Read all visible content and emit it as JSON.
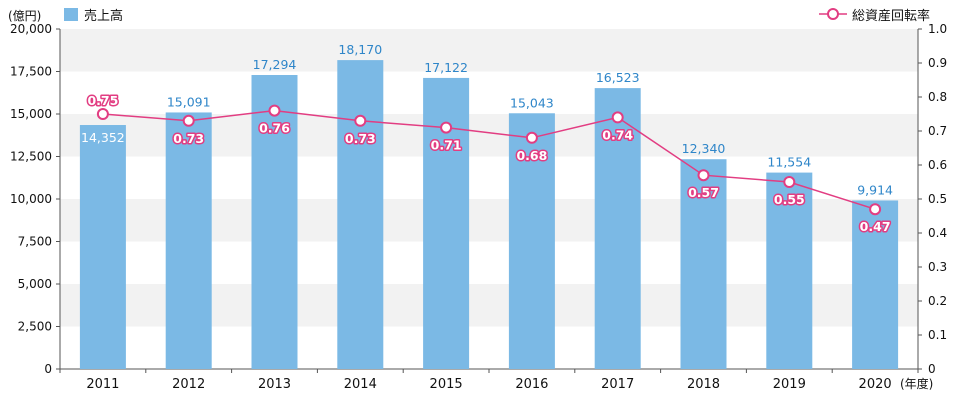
{
  "chart_data": {
    "type": "bar",
    "categories": [
      "2011",
      "2012",
      "2013",
      "2014",
      "2015",
      "2016",
      "2017",
      "2018",
      "2019",
      "2020"
    ],
    "series": [
      {
        "name": "売上高",
        "type": "bar",
        "axis": "left",
        "color": "#7bb9e5",
        "values": [
          14352,
          15091,
          17294,
          18170,
          17122,
          15043,
          16523,
          12340,
          11554,
          9914
        ],
        "labels": [
          "14,352",
          "15,091",
          "17,294",
          "18,170",
          "17,122",
          "15,043",
          "16,523",
          "12,340",
          "11,554",
          "9,914"
        ]
      },
      {
        "name": "総資産回転率",
        "type": "line",
        "axis": "right",
        "color": "#e23d82",
        "values": [
          0.75,
          0.73,
          0.76,
          0.73,
          0.71,
          0.68,
          0.74,
          0.57,
          0.55,
          0.47
        ],
        "labels": [
          "0.75",
          "0.73",
          "0.76",
          "0.73",
          "0.71",
          "0.68",
          "0.74",
          "0.57",
          "0.55",
          "0.47"
        ]
      }
    ],
    "left_axis": {
      "unit": "(億円)",
      "ylim": [
        0,
        20000
      ],
      "ticks": [
        "0",
        "2,500",
        "5,000",
        "7,500",
        "10,000",
        "12,500",
        "15,000",
        "17,500",
        "20,000"
      ]
    },
    "right_axis": {
      "ylim": [
        0,
        1.0
      ],
      "ticks": [
        "0",
        "0.1",
        "0.2",
        "0.3",
        "0.4",
        "0.5",
        "0.6",
        "0.7",
        "0.8",
        "0.9",
        "1.0"
      ]
    },
    "x_unit": "(年度)",
    "legend": {
      "placement": "top"
    },
    "grid": "alternating horizontal bands",
    "band_color": "#f2f2f2"
  }
}
